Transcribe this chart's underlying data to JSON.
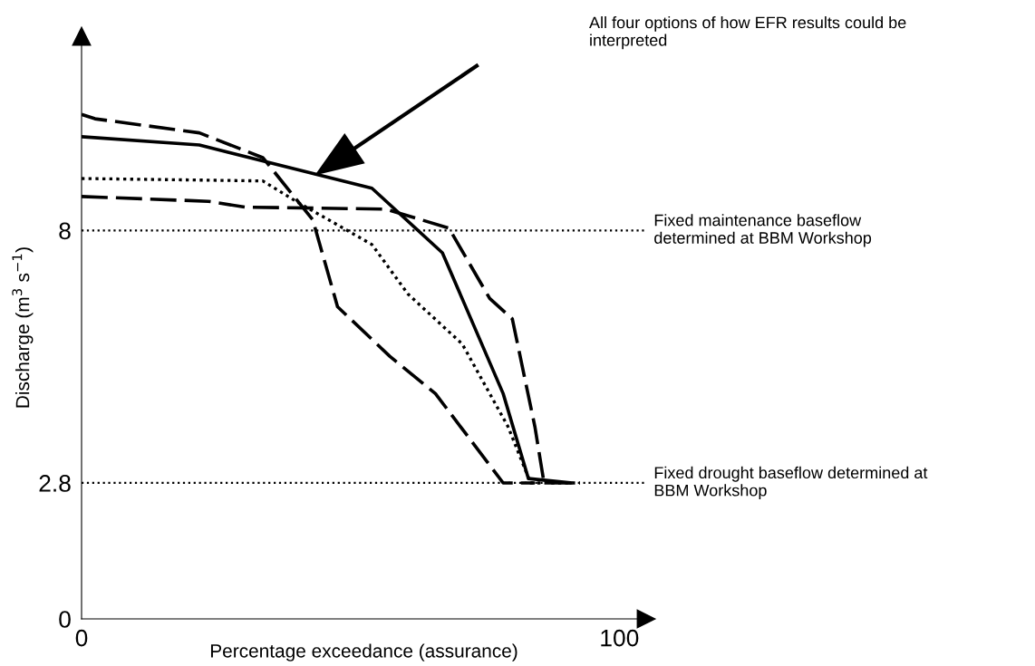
{
  "chart_data": {
    "type": "line",
    "xlabel": "Percentage exceedance (assurance)",
    "ylabel": "Discharge (m$^{3}$ s$^{−1}$)",
    "xlim": [
      0,
      105
    ],
    "ylim": [
      0,
      12
    ],
    "xticks": [
      0,
      100
    ],
    "yticks": [
      0,
      2.8,
      8
    ],
    "grid": false,
    "legend": false,
    "marker": "none",
    "series": [
      {
        "color": "#000000",
        "line_style": "solid",
        "x": [
          0,
          21.9,
          54,
          67.1,
          78.4,
          83.1,
          91
        ],
        "values": [
          9.93,
          9.76,
          8.87,
          7.54,
          4.64,
          2.89,
          2.8
        ]
      },
      {
        "color": "#000000",
        "line_style": "dashed",
        "x": [
          0,
          2.5,
          21.9,
          33.7,
          43,
          47.6,
          57.3,
          65.8,
          78.4,
          84.3
        ],
        "values": [
          10.39,
          10.3,
          10.01,
          9.5,
          8.22,
          6.43,
          5.41,
          4.64,
          2.8,
          2.8
        ]
      },
      {
        "color": "#000000",
        "line_style": "dotted",
        "x": [
          0,
          33.7,
          40.5,
          46.4,
          54,
          60.7,
          70.8,
          79.3,
          83.5,
          92.7
        ],
        "values": [
          9.07,
          9.02,
          8.56,
          8.19,
          7.71,
          6.69,
          5.66,
          3.96,
          2.8,
          2.8
        ]
      },
      {
        "color": "#000000",
        "line_style": "dashed",
        "x": [
          0,
          23.6,
          30.4,
          56.5,
          68.3,
          75.9,
          80.1,
          84.3,
          86,
          91
        ],
        "values": [
          8.7,
          8.6,
          8.48,
          8.44,
          8.05,
          6.6,
          6.18,
          3.96,
          2.8,
          2.8
        ]
      }
    ],
    "ref_lines": [
      {
        "axis": "y",
        "value": 8,
        "label": "Fixed maintenance baseflow\ndetermined at BBM Workshop",
        "color": "#000000",
        "line_style": "dotted"
      },
      {
        "axis": "y",
        "value": 2.8,
        "label": "Fixed drought baseflow determined at\nBBM Workshop",
        "color": "#000000",
        "line_style": "dotted"
      }
    ],
    "annotations": [
      "All four options of how EFR results could be\ninterpreted"
    ]
  }
}
